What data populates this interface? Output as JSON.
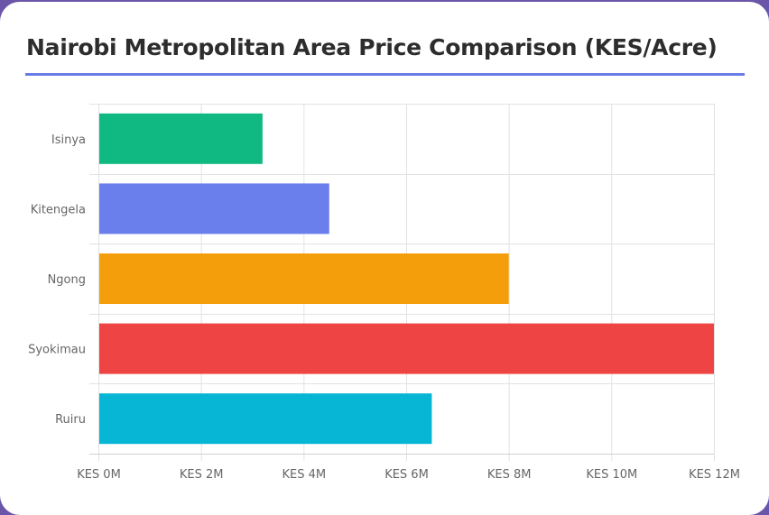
{
  "chart_data": {
    "type": "bar",
    "orientation": "horizontal",
    "title": "Nairobi Metropolitan Area Price Comparison (KES/Acre)",
    "categories": [
      "Isinya",
      "Kitengela",
      "Ngong",
      "Syokimau",
      "Ruiru"
    ],
    "values": [
      3.2,
      4.5,
      8.0,
      12.0,
      6.5
    ],
    "unit": "million KES per acre",
    "colors": [
      "#10b981",
      "#6b7fec",
      "#f59e0b",
      "#ef4444",
      "#06b6d4"
    ],
    "xlim": [
      0,
      12
    ],
    "xticks": [
      0,
      2,
      4,
      6,
      8,
      10,
      12
    ],
    "xtick_labels": [
      "KES 0M",
      "KES 2M",
      "KES 4M",
      "KES 6M",
      "KES 8M",
      "KES 10M",
      "KES 12M"
    ],
    "xlabel": "",
    "ylabel": "",
    "grid": true,
    "legend": "none"
  }
}
